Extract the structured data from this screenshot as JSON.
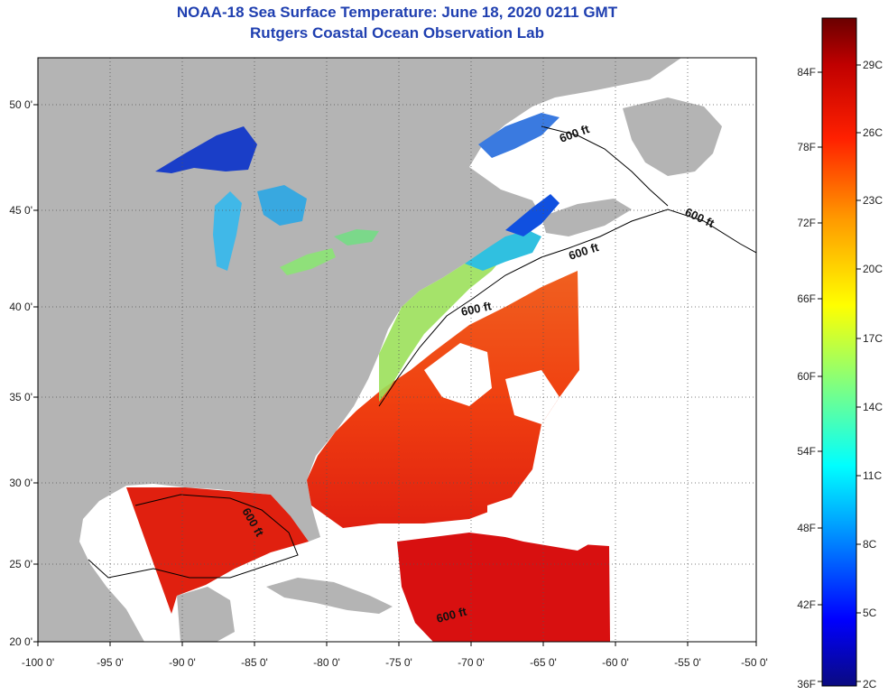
{
  "title": "NOAA-18 Sea Surface Temperature:  June 18, 2020 0211 GMT",
  "subtitle": "Rutgers Coastal Ocean Observation Lab",
  "map": {
    "lon_range": [
      -100,
      -50
    ],
    "lat_range": [
      20,
      52.5
    ],
    "x_ticks": [
      "-100 0'",
      "-95 0'",
      "-90 0'",
      "-85 0'",
      "-80 0'",
      "-75 0'",
      "-70 0'",
      "-65 0'",
      "-60 0'",
      "-55 0'",
      "-50 0'"
    ],
    "y_ticks": [
      "50 0'",
      "45 0'",
      "40 0'",
      "35 0'",
      "30 0'",
      "25 0'",
      "20 0'"
    ],
    "contour_labels": [
      "600 ft",
      "600 ft",
      "600 ft",
      "600 ft",
      "600 ft",
      "600 ft"
    ],
    "colors": {
      "land": "#b4b4b4",
      "no_data": "#ffffff",
      "frame": "#000000"
    }
  },
  "colorbar": {
    "fahrenheit_labels": [
      "84F",
      "78F",
      "72F",
      "66F",
      "60F",
      "54F",
      "48F",
      "42F",
      "36F"
    ],
    "celsius_labels": [
      "29C",
      "26C",
      "23C",
      "20C",
      "17C",
      "14C",
      "11C",
      "8C",
      "5C",
      "2C"
    ],
    "range_c": [
      2,
      31
    ],
    "gradient": [
      "#0a0a80",
      "#0000ff",
      "#00aaff",
      "#00ffff",
      "#80ff80",
      "#ffff00",
      "#ff9900",
      "#ff2000",
      "#b00000",
      "#6a0000"
    ]
  }
}
